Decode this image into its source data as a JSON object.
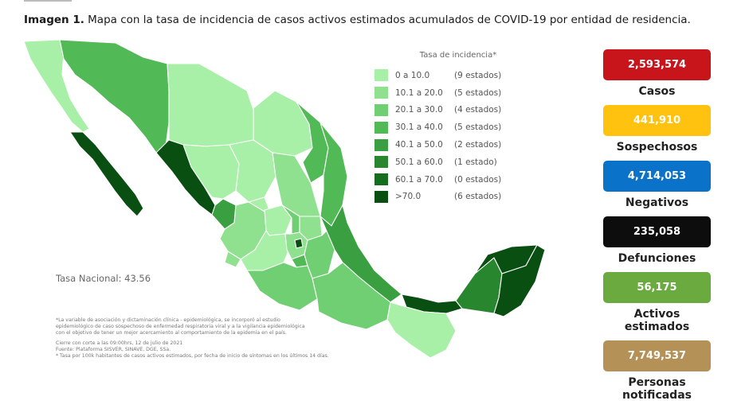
{
  "title": {
    "bold": "Imagen 1.",
    "text": "Mapa con la tasa de incidencia de casos activos estimados acumulados de COVID-19 por entidad de residencia."
  },
  "legend": {
    "title": "Tasa de incidencia*",
    "items": [
      {
        "range": "0   a  10.0",
        "count": "(9 estados)",
        "color": "#a8efa8"
      },
      {
        "range": "10.1  a  20.0",
        "count": "(5 estados)",
        "color": "#8fe18f"
      },
      {
        "range": "20.1  a  30.0",
        "count": "(4 estados)",
        "color": "#70cf72"
      },
      {
        "range": "30.1  a  40.0",
        "count": "(5 estados)",
        "color": "#52b957"
      },
      {
        "range": "40.1  a  50.0",
        "count": "(2 estados)",
        "color": "#3a9f40"
      },
      {
        "range": "50.1  a  60.0",
        "count": "(1 estado)",
        "color": "#27862e"
      },
      {
        "range": "60.1  a  70.0",
        "count": "(0 estados)",
        "color": "#166d20"
      },
      {
        "range": ">70.0",
        "count": "(6 estados)",
        "color": "#0a4f12"
      }
    ]
  },
  "tasa_nacional": "Tasa Nacional: 43.56",
  "notes": {
    "line1": "*La variable de asociación y dictaminación clínica - epidemiológica, se incorporó al estudio",
    "line2": "epidemiológico de caso sospechoso de enfermedad respiratoria viral y a la vigilancia epidemiológica",
    "line3": "con el objetivo de tener un mejor acercamiento al comportamiento de la epidemia en el país.",
    "line4": "Cierre con corte a las 09:00hrs, 12 de julio de 2021",
    "line5": "Fuente: Plataforma SISVER, SINAVE, DGE, SSa.",
    "line6": "* Tasa por 100k habitantes de casos activos estimados, por fecha de inicio de síntomas en los últimos 14 días."
  },
  "stats": [
    {
      "value": "2,593,574",
      "label": "Casos",
      "color": "#c8151c",
      "text_color": "#ffffff"
    },
    {
      "value": "441,910",
      "label": "Sospechosos",
      "color": "#ffc20e",
      "text_color": "#ffffff"
    },
    {
      "value": "4,714,053",
      "label": "Negativos",
      "color": "#0b72c9",
      "text_color": "#ffffff"
    },
    {
      "value": "235,058",
      "label": "Defunciones",
      "color": "#0d0d0d",
      "text_color": "#ffffff"
    },
    {
      "value": "56,175",
      "label": "Activos estimados",
      "color": "#6aaa3e",
      "text_color": "#ffffff"
    },
    {
      "value": "7,749,537",
      "label": "Personas notificadas",
      "color": "#b39157",
      "text_color": "#ffffff"
    }
  ]
}
